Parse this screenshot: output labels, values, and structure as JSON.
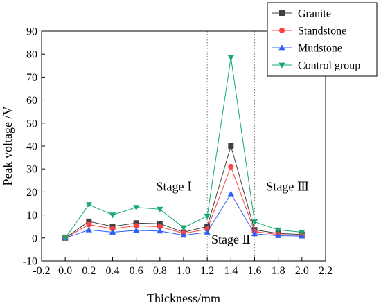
{
  "chart_data": {
    "type": "line",
    "title": "",
    "xlabel": "Thickness/mm",
    "ylabel": "Peak voltage /V",
    "xlim": [
      -0.2,
      2.2
    ],
    "ylim": [
      -10,
      90
    ],
    "x_ticks": [
      -0.2,
      0.0,
      0.2,
      0.4,
      0.6,
      0.8,
      1.0,
      1.2,
      1.4,
      1.6,
      1.8,
      2.0,
      2.2
    ],
    "x_tick_labels": [
      "-0.2",
      "0.0",
      "0.2",
      "0.4",
      "0.6",
      "0.8",
      "1.0",
      "1.2",
      "1.4",
      "1.6",
      "1.8",
      "2.0",
      "2.2"
    ],
    "y_ticks": [
      -10,
      0,
      10,
      20,
      30,
      40,
      50,
      60,
      70,
      80,
      90
    ],
    "y_tick_labels": [
      "-10",
      "0",
      "10",
      "20",
      "30",
      "40",
      "50",
      "60",
      "70",
      "80",
      "90"
    ],
    "grid": false,
    "legend_position": "top-right",
    "x": [
      0.0,
      0.2,
      0.4,
      0.6,
      0.8,
      1.0,
      1.2,
      1.4,
      1.6,
      1.8,
      2.0
    ],
    "series": [
      {
        "name": "Granite",
        "marker": "square",
        "color": "#404040",
        "values": [
          0,
          7.2,
          5.0,
          6.5,
          6.2,
          2.5,
          5.0,
          40.0,
          3.5,
          2.0,
          1.5
        ]
      },
      {
        "name": "Standstone",
        "marker": "circle",
        "color": "#ff4040",
        "values": [
          0,
          5.8,
          4.0,
          5.3,
          4.9,
          2.0,
          3.8,
          31.0,
          2.8,
          1.5,
          1.2
        ]
      },
      {
        "name": "Mudstone",
        "marker": "triangle-up",
        "color": "#2f5ef5",
        "values": [
          0,
          3.5,
          2.5,
          3.3,
          3.0,
          1.2,
          2.5,
          19.2,
          1.8,
          1.0,
          0.8
        ]
      },
      {
        "name": "Control group",
        "marker": "triangle-down",
        "color": "#17a86d",
        "values": [
          0,
          14.5,
          10.0,
          13.3,
          12.5,
          4.5,
          9.5,
          78.5,
          7.0,
          3.5,
          2.5
        ]
      }
    ],
    "vlines": [
      1.2,
      1.6
    ],
    "annotations": [
      {
        "text": "Stage Ⅰ",
        "x": 0.92,
        "y": 20.5
      },
      {
        "text": "Stage Ⅱ",
        "x": 1.4,
        "y": -2.5
      },
      {
        "text": "Stage  Ⅲ",
        "x": 1.88,
        "y": 20.5
      }
    ]
  }
}
